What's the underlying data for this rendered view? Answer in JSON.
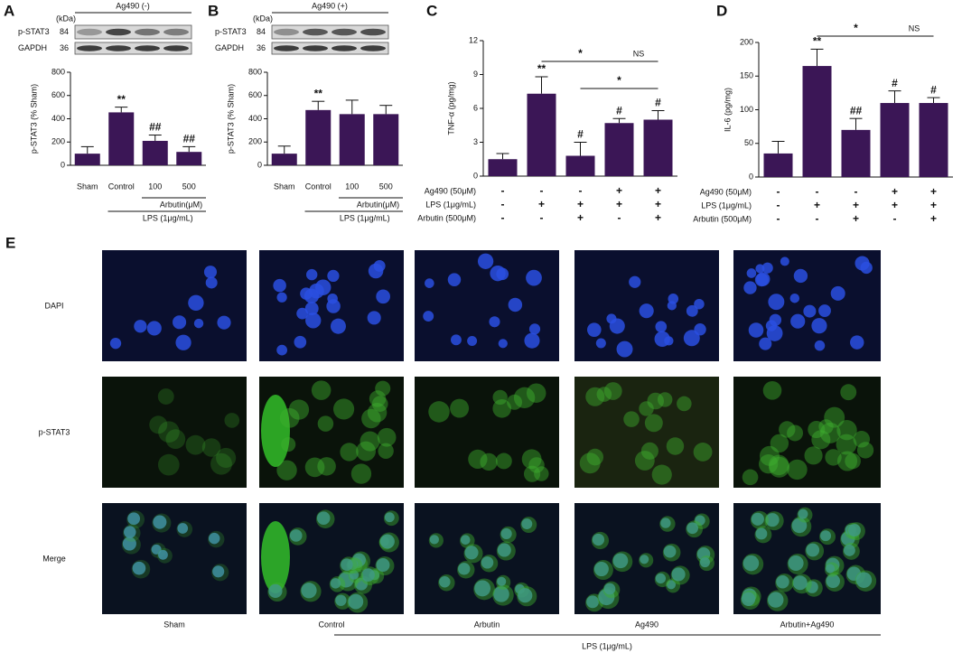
{
  "chart_data": [
    {
      "panel": "A",
      "type": "bar",
      "ylabel": "p-STAT3 (% Sham)",
      "categories": [
        "Sham",
        "Control",
        "100",
        "500"
      ],
      "values": [
        100,
        455,
        210,
        115
      ],
      "errors": [
        60,
        45,
        50,
        45
      ],
      "annotations": [
        null,
        "**",
        "##",
        "##"
      ],
      "groups": [
        "Arbutin(μM)",
        "LPS (1μg/mL)"
      ],
      "color": "#3b1656",
      "ylim": [
        0,
        800
      ],
      "yticks": [
        0,
        200,
        400,
        600,
        800
      ],
      "blot": {
        "header": "Ag490 (-)",
        "unit": "(kDa)",
        "rows": [
          {
            "name": "p-STAT3",
            "kda": 84
          },
          {
            "name": "GAPDH",
            "kda": 36
          }
        ]
      }
    },
    {
      "panel": "B",
      "type": "bar",
      "ylabel": "p-STAT3 (% Sham)",
      "categories": [
        "Sham",
        "Control",
        "100",
        "500"
      ],
      "values": [
        100,
        475,
        440,
        440
      ],
      "errors": [
        65,
        75,
        120,
        75
      ],
      "annotations": [
        null,
        "**",
        null,
        null
      ],
      "groups": [
        "Arbutin(μM)",
        "LPS (1μg/mL)"
      ],
      "color": "#3b1656",
      "ylim": [
        0,
        800
      ],
      "yticks": [
        0,
        200,
        400,
        600,
        800
      ],
      "blot": {
        "header": "Ag490 (+)",
        "unit": "(kDa)",
        "rows": [
          {
            "name": "p-STAT3",
            "kda": 84
          },
          {
            "name": "GAPDH",
            "kda": 36
          }
        ]
      }
    },
    {
      "panel": "C",
      "type": "bar",
      "ylabel": "TNF-α (pg/mg)",
      "values": [
        1.5,
        7.3,
        1.8,
        4.7,
        5.0
      ],
      "errors": [
        0.5,
        1.5,
        1.2,
        0.4,
        0.8
      ],
      "annotations": [
        null,
        "**",
        "#",
        "#",
        "#"
      ],
      "brackets": [
        "*",
        "NS",
        "*"
      ],
      "treatments": [
        {
          "name": "Ag490 (50μM)",
          "signs": [
            "-",
            "-",
            "-",
            "+",
            "+"
          ]
        },
        {
          "name": "LPS (1μg/mL)",
          "signs": [
            "-",
            "+",
            "+",
            "+",
            "+"
          ]
        },
        {
          "name": "Arbutin (500μM)",
          "signs": [
            "-",
            "-",
            "+",
            "-",
            "+"
          ]
        }
      ],
      "color": "#3b1656",
      "ylim": [
        0,
        12
      ],
      "yticks": [
        0,
        3,
        6,
        9,
        12
      ]
    },
    {
      "panel": "D",
      "type": "bar",
      "ylabel": "IL-6 (pg/mg)",
      "values": [
        35,
        165,
        70,
        110,
        110
      ],
      "errors": [
        18,
        25,
        17,
        18,
        8
      ],
      "annotations": [
        null,
        "**",
        "##",
        "#",
        "#"
      ],
      "brackets": [
        "*",
        "NS"
      ],
      "treatments": [
        {
          "name": "Ag490 (50μM)",
          "signs": [
            "-",
            "-",
            "-",
            "+",
            "+"
          ]
        },
        {
          "name": "LPS (1μg/mL)",
          "signs": [
            "-",
            "+",
            "+",
            "+",
            "+"
          ]
        },
        {
          "name": "Arbutin (500μM)",
          "signs": [
            "-",
            "-",
            "+",
            "-",
            "+"
          ]
        }
      ],
      "color": "#3b1656",
      "ylim": [
        0,
        200
      ],
      "yticks": [
        0,
        50,
        100,
        150,
        200
      ]
    }
  ],
  "figure_e": {
    "panel": "E",
    "rows": [
      "DAPI",
      "p-STAT3",
      "Merge"
    ],
    "columns": [
      "Sham",
      "Control",
      "Arbutin",
      "Ag490",
      "Arbutin+Ag490"
    ],
    "group": "LPS (1μg/mL)"
  }
}
